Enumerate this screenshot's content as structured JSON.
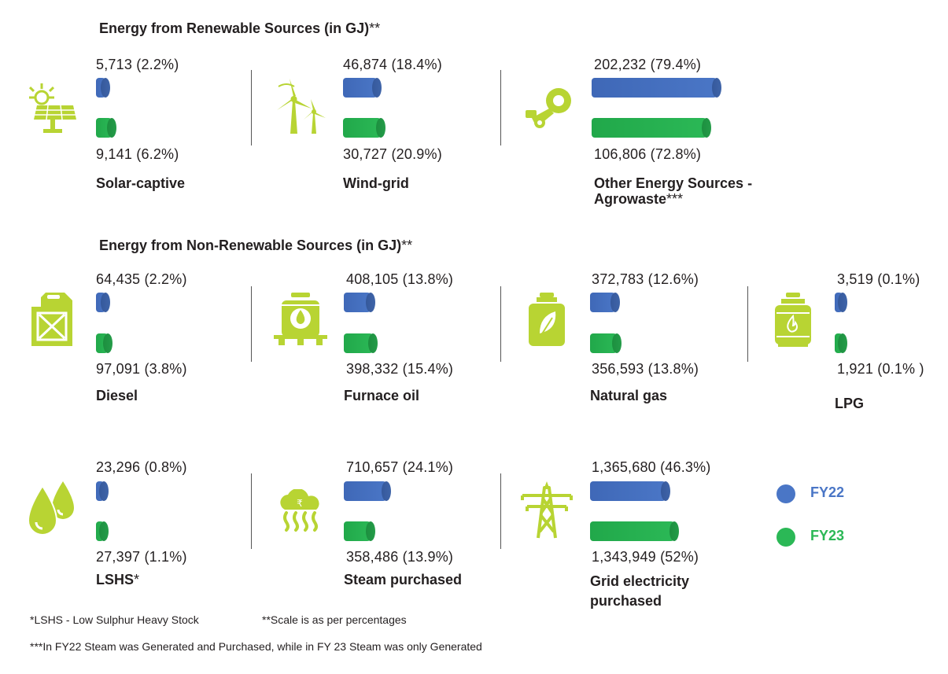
{
  "headings": {
    "renewable": "Energy from Renewable Sources (in GJ)",
    "non_renewable": "Energy from Non-Renewable Sources (in GJ)",
    "stars": "**"
  },
  "legend": {
    "fy22": {
      "label": "FY22",
      "color": "#4a76c6"
    },
    "fy23": {
      "label": "FY23",
      "color": "#2bb856"
    }
  },
  "items": {
    "solar": {
      "name": "Solar-captive",
      "fy22_text": "5,713 (2.2%)",
      "fy23_text": "9,141 (6.2%)",
      "icon": "solar-panel-icon"
    },
    "wind": {
      "name": "Wind-grid",
      "fy22_text": "46,874 (18.4%)",
      "fy23_text": "30,727 (20.9%)",
      "icon": "wind-turbine-icon"
    },
    "agro": {
      "name": "Other Energy Sources -",
      "name2": "Agrowaste",
      "name_stars": "***",
      "fy22_text": "202,232 (79.4%)",
      "fy23_text": "106,806 (72.8%)",
      "icon": "agrowaste-icon"
    },
    "diesel": {
      "name": "Diesel",
      "fy22_text": "64,435 (2.2%)",
      "fy23_text": "97,091 (3.8%)",
      "icon": "jerrycan-icon"
    },
    "furnace": {
      "name": "Furnace oil",
      "fy22_text": "408,105 (13.8%)",
      "fy23_text": "398,332 (15.4%)",
      "icon": "furnace-oil-icon"
    },
    "natgas": {
      "name": "Natural gas",
      "fy22_text": "372,783 (12.6%)",
      "fy23_text": "356,593 (13.8%)",
      "icon": "gas-cylinder-leaf-icon"
    },
    "lpg": {
      "name": "LPG",
      "fy22_text": "3,519 (0.1%)",
      "fy23_text": "1,921 (0.1% )",
      "icon": "lpg-cylinder-icon"
    },
    "lshs": {
      "name": "LSHS",
      "name_stars": "*",
      "fy22_text": "23,296 (0.8%)",
      "fy23_text": "27,397 (1.1%)",
      "icon": "oil-drops-icon"
    },
    "steam": {
      "name": "Steam purchased",
      "fy22_text": "710,657 (24.1%)",
      "fy23_text": "358,486 (13.9%)",
      "icon": "steam-cloud-icon"
    },
    "grid": {
      "name": "Grid electricity",
      "name2": "purchased",
      "fy22_text": "1,365,680 (46.3%)",
      "fy23_text": "1,343,949 (52%)",
      "icon": "power-tower-icon"
    }
  },
  "footnotes": {
    "lshs": "*LSHS - Low Sulphur Heavy Stock",
    "scale": "**Scale is as per percentages",
    "steam": "***In FY22 Steam was Generated and Purchased, while in FY 23 Steam was only Generated"
  },
  "chart_data": [
    {
      "type": "bar",
      "title": "Energy from Renewable Sources (in GJ)**",
      "categories": [
        "Solar-captive",
        "Wind-grid",
        "Other Energy Sources - Agrowaste***"
      ],
      "series": [
        {
          "name": "FY22",
          "values": [
            5713,
            46874,
            202232
          ],
          "percent": [
            2.2,
            18.4,
            79.4
          ]
        },
        {
          "name": "FY23",
          "values": [
            9141,
            30727,
            106806
          ],
          "percent": [
            6.2,
            20.9,
            72.8
          ]
        }
      ],
      "scale": "percentage"
    },
    {
      "type": "bar",
      "title": "Energy from Non-Renewable Sources (in GJ)**",
      "categories": [
        "Diesel",
        "Furnace oil",
        "Natural gas",
        "LPG",
        "LSHS*",
        "Steam purchased",
        "Grid electricity purchased"
      ],
      "series": [
        {
          "name": "FY22",
          "values": [
            64435,
            408105,
            372783,
            3519,
            23296,
            710657,
            1365680
          ],
          "percent": [
            2.2,
            13.8,
            12.6,
            0.1,
            0.8,
            24.1,
            46.3
          ]
        },
        {
          "name": "FY23",
          "values": [
            97091,
            398332,
            356593,
            1921,
            27397,
            358486,
            1343949
          ],
          "percent": [
            3.8,
            15.4,
            13.8,
            0.1,
            1.1,
            13.9,
            52
          ]
        }
      ],
      "scale": "percentage"
    }
  ]
}
